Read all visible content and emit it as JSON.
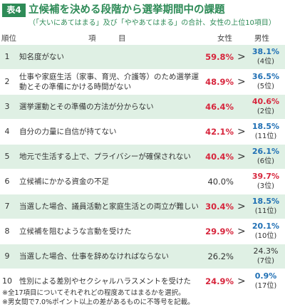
{
  "header": {
    "badge": "表4",
    "title": "立候補を決める段階から選挙期間中の課題",
    "subtitle": "（「大いにあてはまる」及び「ややあてはまる」の合計、女性の上位10項目）"
  },
  "columns": {
    "rank": "順位",
    "item": "項　　　目",
    "female": "女性",
    "male": "男性"
  },
  "rows": [
    {
      "rank": "1",
      "item": "知名度がない",
      "female": "59.8%",
      "female_style": "red",
      "gt": ">",
      "male": "38.1%",
      "male_style": "blue",
      "male_rank": "(4位)"
    },
    {
      "rank": "2",
      "item": "仕事や家庭生活（家事、育児、介護等）のため選挙運動とその準備にかける時間がない",
      "female": "48.9%",
      "female_style": "red",
      "gt": ">",
      "male": "36.5%",
      "male_style": "blue",
      "male_rank": "(5位)"
    },
    {
      "rank": "3",
      "item": "選挙運動とその準備の方法が分からない",
      "female": "46.4%",
      "female_style": "red",
      "gt": "",
      "male": "40.6%",
      "male_style": "red",
      "male_rank": "(2位)"
    },
    {
      "rank": "4",
      "item": "自分の力量に自信が持てない",
      "female": "42.1%",
      "female_style": "red",
      "gt": ">",
      "male": "18.5%",
      "male_style": "blue",
      "male_rank": "(11位)"
    },
    {
      "rank": "5",
      "item": "地元で生活する上で、プライバシーが確保されない",
      "female": "40.4%",
      "female_style": "red",
      "gt": ">",
      "male": "26.1%",
      "male_style": "blue",
      "male_rank": "(6位)"
    },
    {
      "rank": "6",
      "item": "立候補にかかる資金の不足",
      "female": "40.0%",
      "female_style": "plain",
      "gt": "",
      "male": "39.7%",
      "male_style": "red",
      "male_rank": "(3位)"
    },
    {
      "rank": "7",
      "item": "当選した場合、議員活動と家庭生活との両立が難しい",
      "female": "30.4%",
      "female_style": "red",
      "gt": ">",
      "male": "18.5%",
      "male_style": "blue",
      "male_rank": "(11位)"
    },
    {
      "rank": "8",
      "item": "立候補を阻むような言動を受けた",
      "female": "29.9%",
      "female_style": "red",
      "gt": ">",
      "male": "20.1%",
      "male_style": "blue",
      "male_rank": "(10位)"
    },
    {
      "rank": "9",
      "item": "当選した場合、仕事を辞めなければならない",
      "female": "26.2%",
      "female_style": "plain",
      "gt": "",
      "male": "24.3%",
      "male_style": "plain",
      "male_rank": "(7位)"
    },
    {
      "rank": "10",
      "item": "性別による差別やセクシャルハラスメントを受けた",
      "female": "24.9%",
      "female_style": "red",
      "gt": ">",
      "male": "0.9%",
      "male_style": "blue",
      "male_rank": "(17位)"
    }
  ],
  "notes": [
    "※全17項目についてそれぞれどの程度あてはまるかを選択。",
    "※男女間で7.0%ポイント以上の差があるものに不等号を記載。"
  ],
  "colors": {
    "accent": "#2e8b57",
    "row_bg": "#dff0e4",
    "red": "#d7263d",
    "blue": "#1f6fb4"
  }
}
